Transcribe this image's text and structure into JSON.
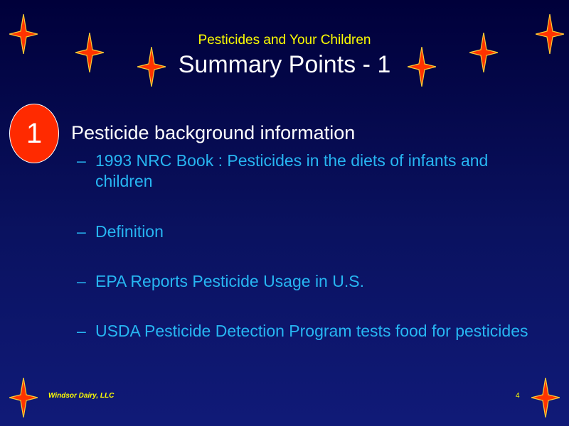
{
  "slide": {
    "subtitle": "Pesticides and Your Children",
    "title": "Summary Points - 1",
    "badge_number": "1",
    "heading": "Pesticide background information",
    "bullets": [
      {
        "dash": "–",
        "text": "1993 NRC Book : Pesticides in the diets of infants and children"
      },
      {
        "dash": "–",
        "text": "Definition"
      },
      {
        "dash": "–",
        "text": "EPA Reports Pesticide Usage in U.S."
      },
      {
        "dash": "–",
        "text": "USDA Pesticide Detection Program tests food for pesticides"
      }
    ],
    "footer_left": "Windsor Dairy, LLC",
    "page_number": "4"
  },
  "colors": {
    "background_top": "#00003a",
    "background_bottom": "#101a78",
    "subtitle": "#ffff00",
    "title": "#ffffff",
    "bullet_text": "#27b6f2",
    "badge_fill": "#ff2a00",
    "star_fill": "#ff3300",
    "star_outline": "#ffcc33"
  },
  "icons": [
    "star-icon",
    "number-badge"
  ]
}
